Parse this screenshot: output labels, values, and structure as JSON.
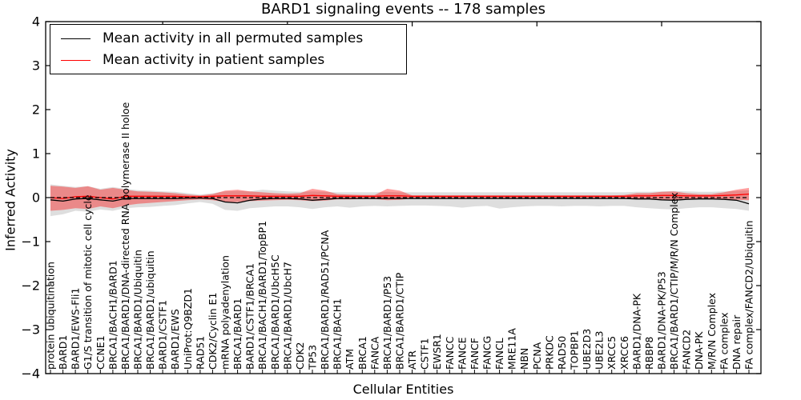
{
  "chart_data": {
    "type": "line",
    "title": "BARD1 signaling events -- 178 samples",
    "xlabel": "Cellular Entities",
    "ylabel": "Inferred Activity",
    "ylim": [
      -4,
      4
    ],
    "yticks": [
      4,
      3,
      2,
      1,
      0,
      -1,
      -2,
      -3,
      -4
    ],
    "top_axis_ticks_at_category_numbers": [
      10,
      20,
      30,
      40,
      50
    ],
    "grid": false,
    "legend_position": "upper left",
    "zero_line": {
      "y": 0,
      "color": "#000000",
      "style": "dashed"
    },
    "categories": [
      "protein ubiquitination",
      "BARD1",
      "BARD1/EWS-Fli1",
      "G1/S transition of mitotic cell cycle",
      "CCNE1",
      "BRCA1/BACH1/BARD1",
      "BRCA1/BARD1/DNA-directed RNA polymerase II holoe",
      "BRCA1/BARD1/Ubiquitin",
      "BRCA1/BARD1/ubiquitin",
      "BARD1/CSTF1",
      "BARD1/EWS",
      "UniProt:Q9BZD1",
      "RAD51",
      "CDK2/Cyclin E1",
      "mRNA polyadenylation",
      "BRCA1/BARD1",
      "BARD1/CSTF1/BRCA1",
      "BRCA1/BACH1/BARD1/TopBP1",
      "BRCA1/BARD1/UbcH5C",
      "BRCA1/BARD1/UbcH7",
      "CDK2",
      "TP53",
      "BRCA1/BARD1/RAD51/PCNA",
      "BRCA1/BACH1",
      "ATM",
      "BRCA1",
      "FANCA",
      "BRCA1/BARD1/P53",
      "BRCA1/BARD1/CTIP",
      "ATR",
      "CSTF1",
      "EWSR1",
      "FANCC",
      "FANCE",
      "FANCF",
      "FANCG",
      "FANCL",
      "MRE11A",
      "NBN",
      "PCNA",
      "PRKDC",
      "RAD50",
      "TOPBP1",
      "UBE2D3",
      "UBE2L3",
      "XRCC5",
      "XRCC6",
      "BARD1/DNA-PK",
      "RBBP8",
      "BARD1/DNA-PK/P53",
      "BRCA1/BARD1/CTIP/M/R/N Complex",
      "FANCD2",
      "DNA-PK",
      "M/R/N Complex",
      "FA complex",
      "DNA repair",
      "FA complex/FANCD2/Ubiquitin"
    ],
    "series": [
      {
        "name": "Mean activity in all permuted samples",
        "color": "#000000",
        "values": [
          -0.05,
          -0.08,
          -0.03,
          -0.02,
          -0.05,
          -0.08,
          -0.02,
          -0.02,
          -0.02,
          -0.02,
          -0.02,
          -0.01,
          -0.01,
          -0.02,
          -0.1,
          -0.12,
          -0.06,
          -0.03,
          -0.02,
          -0.02,
          -0.03,
          -0.06,
          -0.04,
          -0.02,
          -0.02,
          -0.02,
          -0.02,
          -0.02,
          -0.02,
          -0.02,
          -0.02,
          -0.02,
          -0.02,
          -0.02,
          -0.02,
          -0.02,
          -0.02,
          -0.02,
          -0.02,
          -0.02,
          -0.02,
          -0.02,
          -0.02,
          -0.02,
          -0.02,
          -0.02,
          -0.02,
          -0.03,
          -0.03,
          -0.05,
          -0.06,
          -0.04,
          -0.03,
          -0.03,
          -0.04,
          -0.06,
          -0.14
        ]
      },
      {
        "name": "Mean activity in patient samples",
        "color": "#ff0000",
        "values": [
          0.0,
          -0.02,
          0.02,
          0.03,
          0.0,
          -0.03,
          0.03,
          0.03,
          0.03,
          0.03,
          0.03,
          0.02,
          0.02,
          0.03,
          0.04,
          0.04,
          0.04,
          0.03,
          0.03,
          0.03,
          0.03,
          0.05,
          0.04,
          0.03,
          0.03,
          0.03,
          0.03,
          0.04,
          0.04,
          0.03,
          0.03,
          0.03,
          0.03,
          0.03,
          0.03,
          0.03,
          0.03,
          0.03,
          0.03,
          0.03,
          0.03,
          0.03,
          0.03,
          0.03,
          0.03,
          0.03,
          0.03,
          0.04,
          0.04,
          0.05,
          0.05,
          0.04,
          0.04,
          0.04,
          0.05,
          0.06,
          0.08
        ]
      }
    ],
    "bands": [
      {
        "name": "permuted-samples-std-band",
        "color": "#000000",
        "opacity": 0.13,
        "upper": [
          0.3,
          0.27,
          0.24,
          0.26,
          0.2,
          0.24,
          0.2,
          0.17,
          0.16,
          0.14,
          0.13,
          0.1,
          0.07,
          0.1,
          0.14,
          0.15,
          0.14,
          0.18,
          0.16,
          0.14,
          0.13,
          0.14,
          0.13,
          0.12,
          0.12,
          0.12,
          0.12,
          0.13,
          0.12,
          0.12,
          0.12,
          0.12,
          0.12,
          0.12,
          0.12,
          0.12,
          0.12,
          0.12,
          0.12,
          0.12,
          0.12,
          0.12,
          0.12,
          0.12,
          0.12,
          0.12,
          0.12,
          0.13,
          0.13,
          0.14,
          0.15,
          0.14,
          0.13,
          0.13,
          0.14,
          0.15,
          0.17
        ],
        "lower": [
          -0.42,
          -0.38,
          -0.3,
          -0.32,
          -0.27,
          -0.3,
          -0.24,
          -0.22,
          -0.21,
          -0.19,
          -0.17,
          -0.13,
          -0.1,
          -0.14,
          -0.28,
          -0.3,
          -0.24,
          -0.22,
          -0.2,
          -0.2,
          -0.22,
          -0.26,
          -0.22,
          -0.2,
          -0.23,
          -0.2,
          -0.19,
          -0.2,
          -0.19,
          -0.18,
          -0.18,
          -0.19,
          -0.2,
          -0.23,
          -0.2,
          -0.19,
          -0.25,
          -0.22,
          -0.2,
          -0.19,
          -0.19,
          -0.2,
          -0.19,
          -0.19,
          -0.2,
          -0.19,
          -0.19,
          -0.22,
          -0.24,
          -0.26,
          -0.27,
          -0.24,
          -0.22,
          -0.22,
          -0.24,
          -0.26,
          -0.3
        ]
      },
      {
        "name": "patient-samples-std-band",
        "color": "#ff0000",
        "opacity": 0.38,
        "upper": [
          0.27,
          0.25,
          0.22,
          0.26,
          0.18,
          0.22,
          0.18,
          0.14,
          0.13,
          0.12,
          0.1,
          0.07,
          0.05,
          0.08,
          0.16,
          0.18,
          0.14,
          0.12,
          0.1,
          0.09,
          0.1,
          0.2,
          0.16,
          0.08,
          0.07,
          0.06,
          0.06,
          0.2,
          0.16,
          0.05,
          0.05,
          0.05,
          0.05,
          0.05,
          0.05,
          0.05,
          0.05,
          0.05,
          0.05,
          0.05,
          0.05,
          0.05,
          0.05,
          0.05,
          0.05,
          0.05,
          0.06,
          0.1,
          0.1,
          0.13,
          0.14,
          0.1,
          0.08,
          0.08,
          0.12,
          0.18,
          0.22
        ],
        "lower": [
          -0.3,
          -0.28,
          -0.24,
          -0.26,
          -0.2,
          -0.24,
          -0.18,
          -0.14,
          -0.12,
          -0.1,
          -0.08,
          -0.06,
          -0.04,
          -0.06,
          -0.1,
          -0.1,
          -0.08,
          -0.07,
          -0.06,
          -0.05,
          -0.06,
          -0.08,
          -0.07,
          -0.04,
          -0.04,
          -0.03,
          -0.03,
          -0.06,
          -0.05,
          -0.02,
          -0.02,
          -0.02,
          -0.02,
          -0.02,
          -0.02,
          -0.02,
          -0.02,
          -0.02,
          -0.02,
          -0.02,
          -0.02,
          -0.02,
          -0.02,
          -0.02,
          -0.02,
          -0.02,
          -0.02,
          -0.04,
          -0.04,
          -0.06,
          -0.06,
          -0.04,
          -0.03,
          -0.03,
          -0.04,
          -0.05,
          -0.06
        ]
      }
    ]
  }
}
